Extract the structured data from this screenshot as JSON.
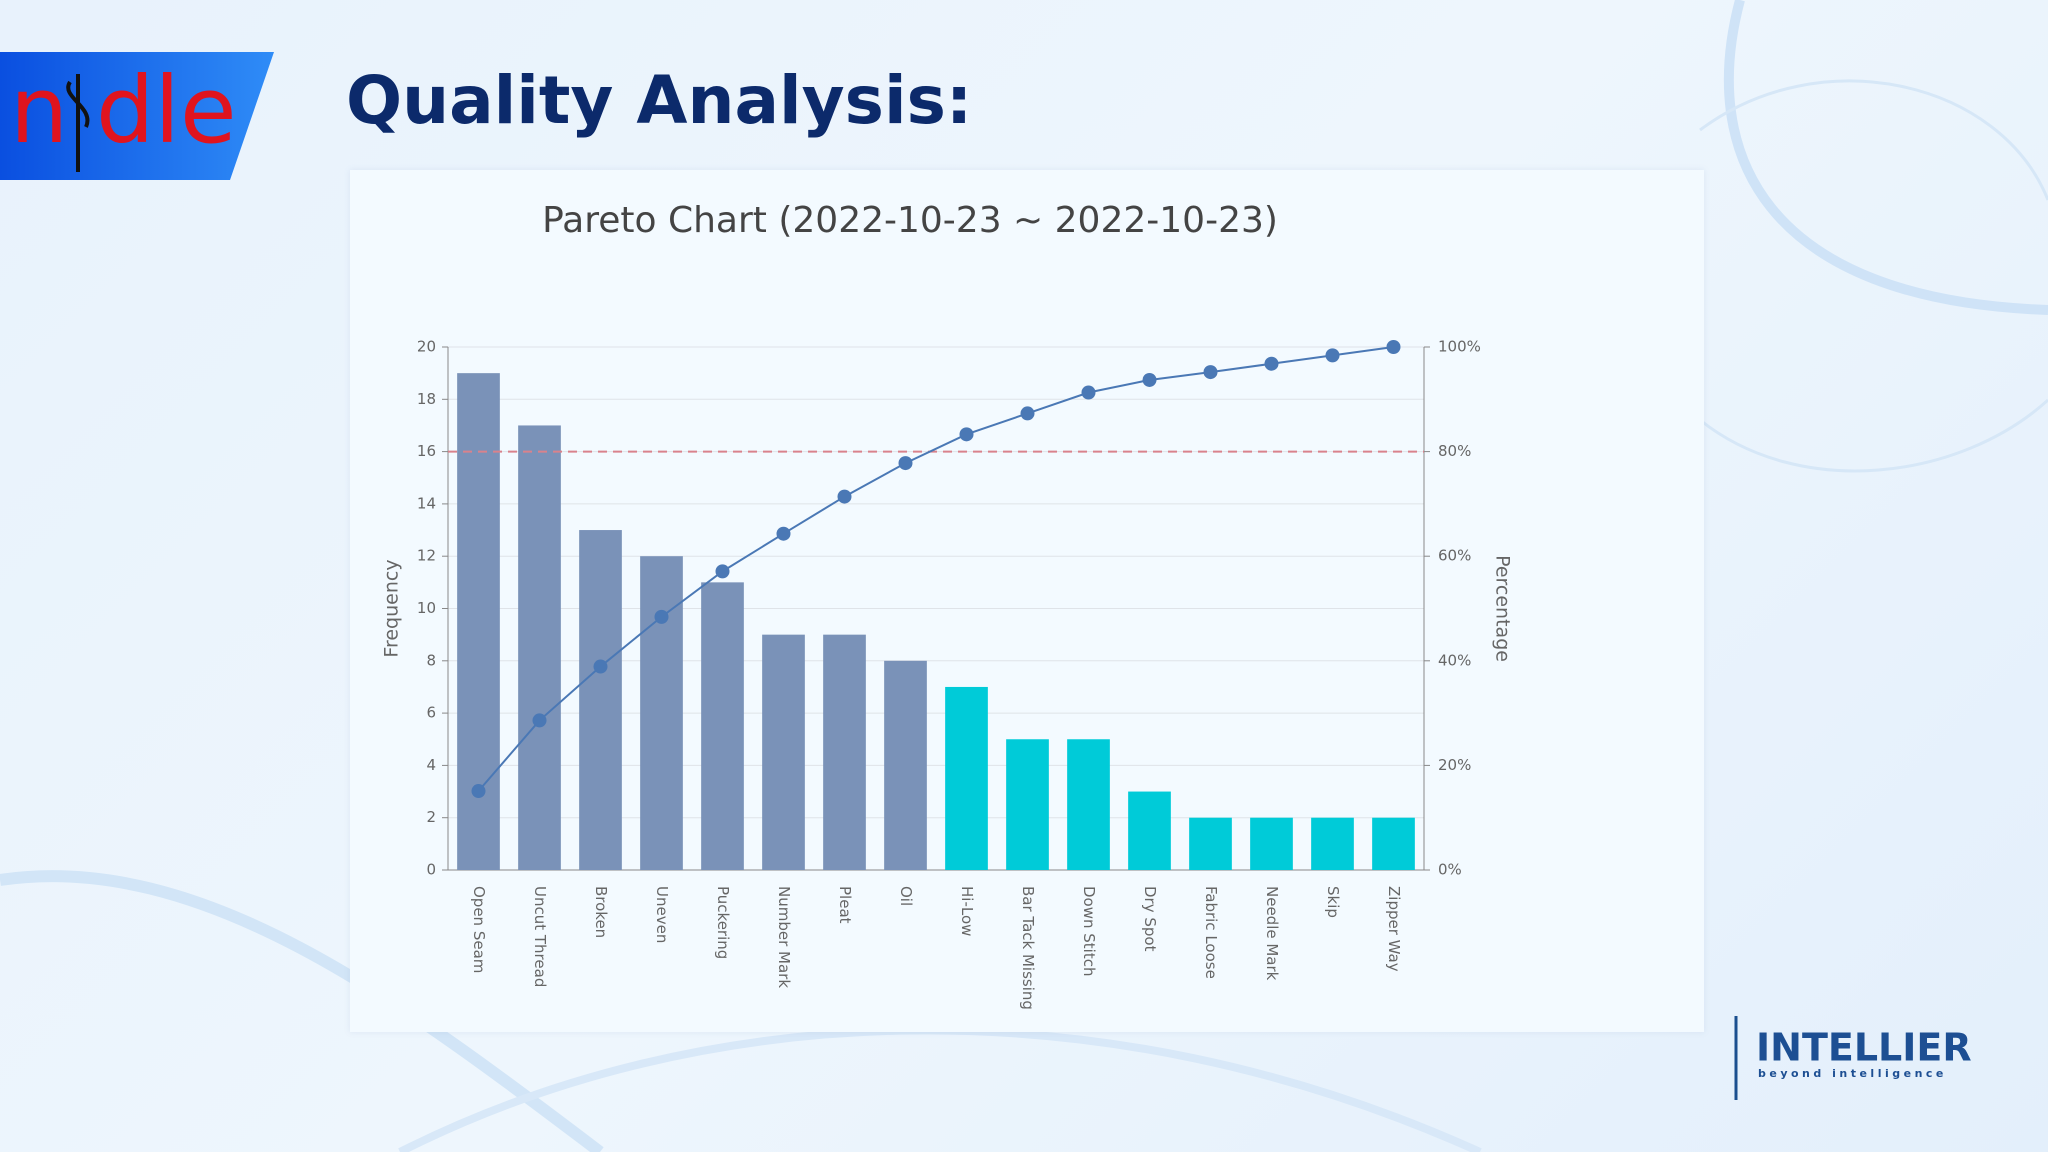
{
  "logo": [
    "n",
    "dle"
  ],
  "heading": "Quality Analysis:",
  "brand": {
    "name": "INTELLIER",
    "tagline": "beyond intelligence"
  },
  "chart_data": {
    "type": "pareto",
    "title": "Pareto Chart (2022-10-23 ~ 2022-10-23)",
    "y_label": "Frequency",
    "y2_label": "Percentage",
    "categories": [
      "Open Seam",
      "Uncut Thread",
      "Broken",
      "Uneven",
      "Puckering",
      "Number Mark",
      "Pleat",
      "Oil",
      "Hi-Low",
      "Bar Tack Missing",
      "Down Stitch",
      "Dry Spot",
      "Fabric Loose",
      "Needle Mark",
      "Skip",
      "Zipper Way"
    ],
    "series": [
      {
        "type": "bar",
        "values": [
          19,
          17,
          13,
          12,
          11,
          9,
          9,
          8,
          7,
          5,
          5,
          3,
          2,
          2,
          2,
          2
        ],
        "colors": [
          "#7a92b8",
          "#7a92b8",
          "#7a92b8",
          "#7a92b8",
          "#7a92b8",
          "#7a92b8",
          "#7a92b8",
          "#7a92b8",
          "#00cbd8",
          "#00cbd8",
          "#00cbd8",
          "#00cbd8",
          "#00cbd8",
          "#00cbd8",
          "#00cbd8",
          "#00cbd8"
        ]
      },
      {
        "type": "line",
        "axis": "y2",
        "color": "#4a78b5",
        "values": [
          15.1,
          28.6,
          38.9,
          48.4,
          57.1,
          64.3,
          71.4,
          77.8,
          83.3,
          87.3,
          91.3,
          93.7,
          95.2,
          96.8,
          98.4,
          100
        ]
      }
    ],
    "threshold": {
      "value": 80,
      "color": "#d9828c"
    },
    "ylim": [
      0,
      20
    ],
    "yticks": [
      0,
      2,
      4,
      6,
      8,
      10,
      12,
      14,
      16,
      18,
      20
    ],
    "y2lim": [
      0,
      100
    ],
    "y2ticks": [
      {
        "value": 0,
        "label": "0%"
      },
      {
        "value": 20,
        "label": "20%"
      },
      {
        "value": 40,
        "label": "40%"
      },
      {
        "value": 60,
        "label": "60%"
      },
      {
        "value": 80,
        "label": "80%"
      },
      {
        "value": 100,
        "label": "100%"
      }
    ],
    "grid": true
  }
}
